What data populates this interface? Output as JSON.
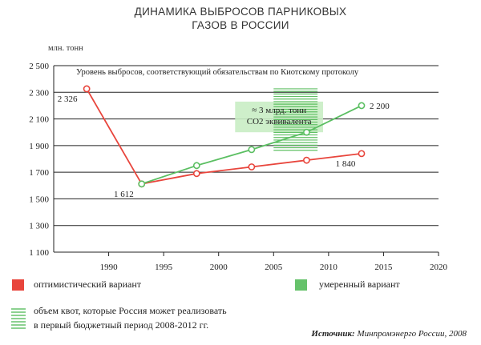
{
  "title_line1": "ДИНАМИКА ВЫБРОСОВ ПАРНИКОВЫХ",
  "title_line2": "ГАЗОВ В РОССИИ",
  "unit_label": "млн. тонн",
  "kyoto_label": "Уровень выбросов, соответствующий обязательствам по Киотскому протоколу",
  "box_label_line1": "≈ 3 млрд. тонн",
  "box_label_line2": "CO2 эквивалента",
  "legend": {
    "optimistic": "оптимистический вариант",
    "moderate": "умеренный вариант",
    "quota_line1": "объем квот, которые Россия может реализовать",
    "quota_line2": "в первый бюджетный период 2008-2012 гг."
  },
  "source_prefix": "Источник:",
  "source_text": "Минпромэнерго России, 2008",
  "colors": {
    "optimistic": "#e8453c",
    "moderate": "#5bbf62",
    "box": "#c9edc4"
  },
  "chart_data": {
    "type": "line",
    "x_ticks": [
      1990,
      1995,
      2000,
      2005,
      2010,
      2015,
      2020
    ],
    "y_ticks": [
      1100,
      1300,
      1500,
      1700,
      1900,
      2100,
      2300,
      2500
    ],
    "y_tick_labels": [
      "1 100",
      "1 300",
      "1 500",
      "1 700",
      "1 900",
      "2 100",
      "2 300",
      "2 500"
    ],
    "xlim": [
      1985,
      2020
    ],
    "ylim": [
      1100,
      2500
    ],
    "kyoto_level": 2326,
    "series": [
      {
        "key": "optimistic",
        "x": [
          1988,
          1993,
          1998,
          2003,
          2008,
          2013
        ],
        "y": [
          2326,
          1612,
          1690,
          1740,
          1790,
          1840
        ]
      },
      {
        "key": "moderate",
        "x": [
          1993,
          1998,
          2003,
          2008,
          2013
        ],
        "y": [
          1612,
          1750,
          1870,
          2000,
          2200
        ]
      }
    ],
    "point_labels": [
      {
        "text": "2 326",
        "series": "optimistic",
        "index": 0
      },
      {
        "text": "1 612",
        "series": "optimistic",
        "index": 1
      },
      {
        "text": "1 840",
        "series": "optimistic",
        "index": 5
      },
      {
        "text": "2 200",
        "series": "moderate",
        "index": 4
      }
    ],
    "quota_box": {
      "x_range": [
        2001.5,
        2009.5
      ],
      "y_range": [
        2000,
        2230
      ]
    },
    "quota_stripes": {
      "x_range": [
        2005,
        2009
      ],
      "y_range": [
        1850,
        2326
      ]
    }
  }
}
